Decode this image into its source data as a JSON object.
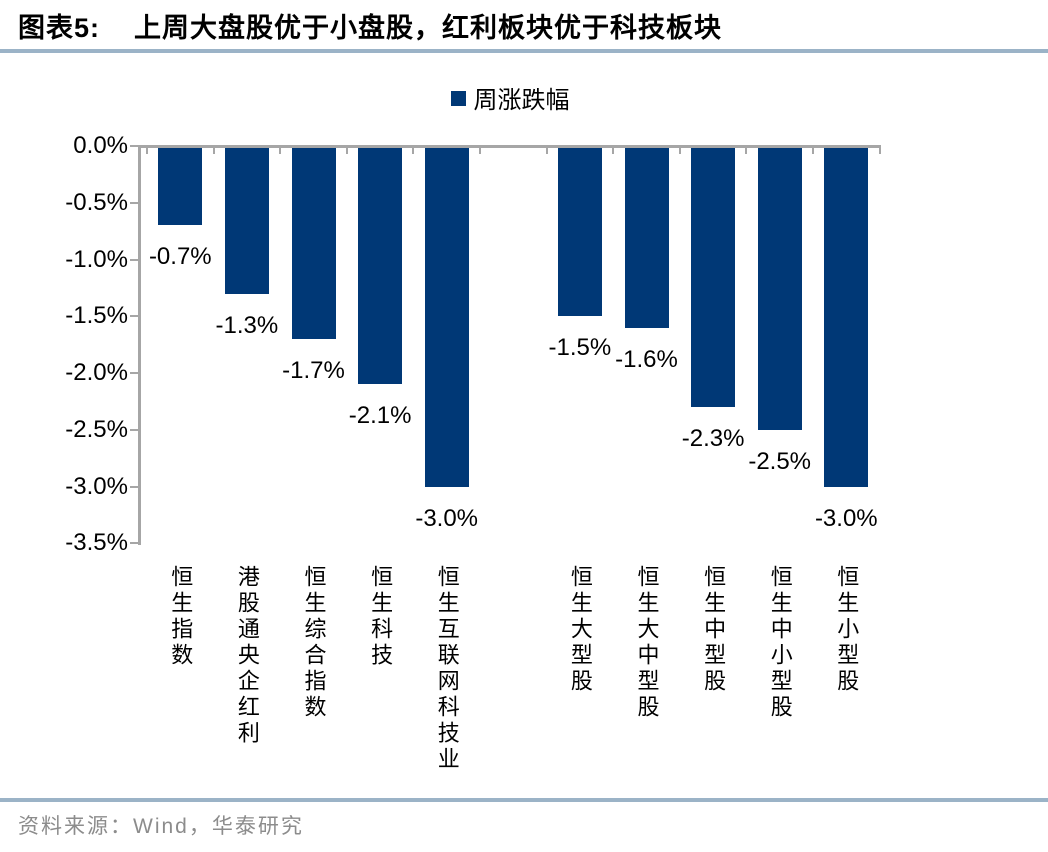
{
  "title": {
    "prefix": "图表5:",
    "text": "上周大盘股优于小盘股，红利板块优于科技板块"
  },
  "legend": {
    "label": "周涨跌幅"
  },
  "y_axis": {
    "tick_labels": [
      "0.0%",
      "-0.5%",
      "-1.0%",
      "-1.5%",
      "-2.0%",
      "-2.5%",
      "-3.0%",
      "-3.5%"
    ]
  },
  "chart_data": {
    "type": "bar",
    "figure_label": "图表5",
    "title": "上周大盘股优于小盘股，红利板块优于科技板块",
    "legend": [
      "周涨跌幅"
    ],
    "legend_position": "top-center",
    "grid": false,
    "ylim": [
      -3.5,
      0
    ],
    "y_tick_step": 0.5,
    "y_unit": "%",
    "categories": [
      "恒生指数",
      "港股通央企红利",
      "恒生综合指数",
      "恒生科技",
      "恒生互联网科技业",
      "恒生大型股",
      "恒生大中型股",
      "恒生中型股",
      "恒生中小型股",
      "恒生小型股"
    ],
    "values": [
      -0.7,
      -1.3,
      -1.7,
      -2.1,
      -3.0,
      -1.5,
      -1.6,
      -2.3,
      -2.5,
      -3.0
    ],
    "data_labels": [
      "-0.7%",
      "-1.3%",
      "-1.7%",
      "-2.1%",
      "-3.0%",
      "-1.5%",
      "-1.6%",
      "-2.3%",
      "-2.5%",
      "-3.0%"
    ],
    "group_gap_after_index": 4
  },
  "footer": {
    "source": "资料来源：Wind，华泰研究"
  },
  "colors": {
    "bar": "#003876",
    "axis": "#a6a6a6",
    "divider": "#9bb3c7",
    "source_text": "#8c8c8c",
    "label_text": "#000000"
  }
}
